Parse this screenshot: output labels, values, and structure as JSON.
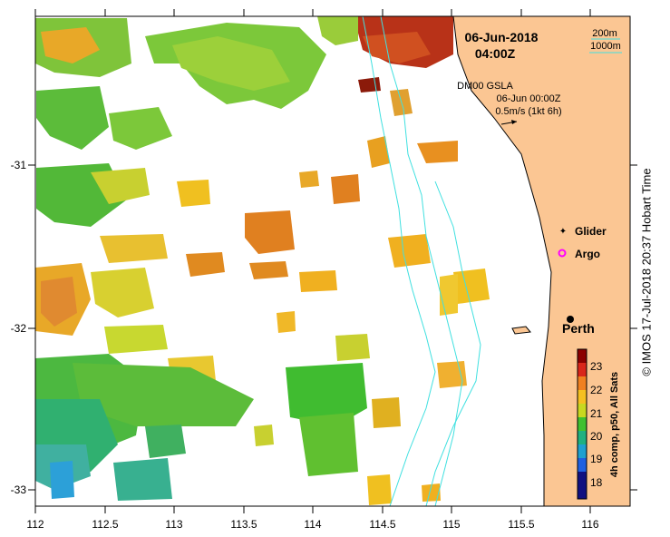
{
  "map": {
    "date": "06-Jun-2018",
    "time": "04:00Z",
    "isobath_labels": [
      "200m",
      "1000m"
    ],
    "gsla": {
      "label": "DM00 GSLA",
      "date": "06-Jun 00:00Z",
      "scale": "0.5m/s (1kt 6h)"
    },
    "legend": [
      {
        "label": "Glider",
        "color": "#ff00ff"
      },
      {
        "label": "Argo",
        "color": "#ff00ff"
      }
    ],
    "city": "Perth",
    "lon_ticks": [
      "112",
      "112.5",
      "113",
      "113.5",
      "114",
      "114.5",
      "115",
      "115.5",
      "116"
    ],
    "lat_ticks": [
      "-31",
      "-32",
      "-33"
    ],
    "colorbar": {
      "ticks": [
        "23",
        "22",
        "21",
        "20",
        "19",
        "18"
      ],
      "caption": "4h comp, p50, All Sats",
      "colors": [
        "#8b0000",
        "#d9261a",
        "#f08020",
        "#f5c020",
        "#c8d820",
        "#40c030",
        "#20b080",
        "#20a0d0",
        "#2060e0",
        "#101080"
      ]
    },
    "credit": "© IMOS 17-Jul-2018 20:37 Hobart Time",
    "colors": {
      "land": "#fbc693",
      "coast": "#000000",
      "isobath_200": "#40e0e0",
      "isobath_1000": "#40e0e0"
    }
  }
}
